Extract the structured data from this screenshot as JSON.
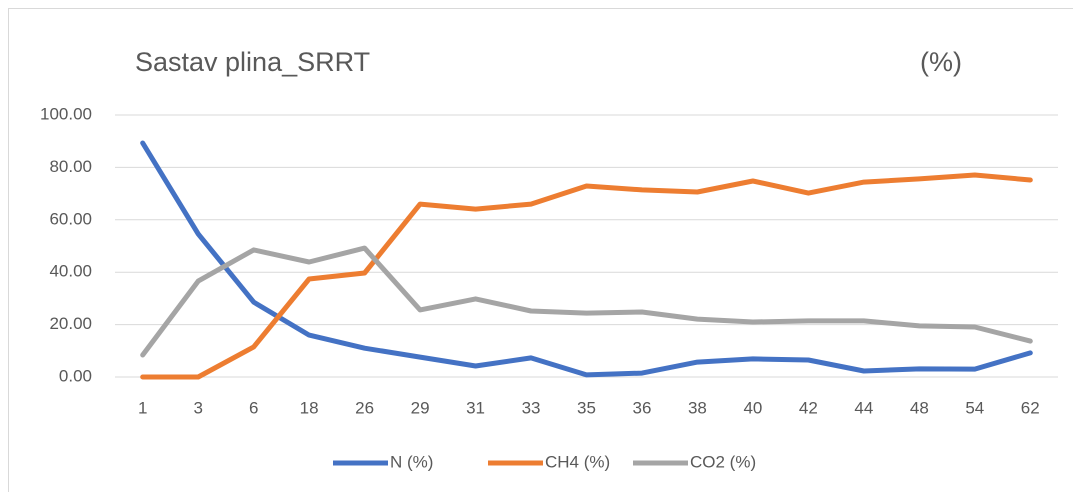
{
  "chart_data": {
    "type": "line",
    "title": "Sastav plina_SRRT",
    "y_label": "(%)",
    "categories": [
      "1",
      "3",
      "6",
      "18",
      "26",
      "29",
      "31",
      "33",
      "35",
      "36",
      "38",
      "40",
      "42",
      "44",
      "48",
      "54",
      "62"
    ],
    "series": [
      {
        "name": "N (%)",
        "color": "#4472c4",
        "values": [
          89.3,
          54.6,
          28.6,
          16,
          11,
          7.6,
          4.2,
          7.3,
          0.8,
          1.5,
          5.7,
          6.9,
          6.5,
          2.3,
          3.1,
          3,
          9.2
        ]
      },
      {
        "name": "CH4 (%)",
        "color": "#ed7d31",
        "values": [
          0,
          0,
          11.5,
          37.4,
          39.7,
          66,
          64.1,
          66,
          72.9,
          71.4,
          70.6,
          74.8,
          70.2,
          74.4,
          75.6,
          77.1,
          75.2
        ]
      },
      {
        "name": "CO2 (%)",
        "color": "#a5a5a5",
        "values": [
          8.4,
          36.6,
          48.5,
          43.9,
          49.2,
          25.6,
          29.8,
          25.2,
          24.4,
          24.8,
          22.1,
          21,
          21.4,
          21.4,
          19.5,
          19.1,
          13.7
        ]
      }
    ],
    "ylim": [
      0,
      100
    ],
    "yticks": [
      {
        "value": 0,
        "label": "0.00"
      },
      {
        "value": 20,
        "label": "20.00"
      },
      {
        "value": 40,
        "label": "40.00"
      },
      {
        "value": 60,
        "label": "60.00"
      },
      {
        "value": 80,
        "label": "80.00"
      },
      {
        "value": 100,
        "label": "100.00"
      }
    ],
    "grid": true,
    "legend": "bottom"
  }
}
